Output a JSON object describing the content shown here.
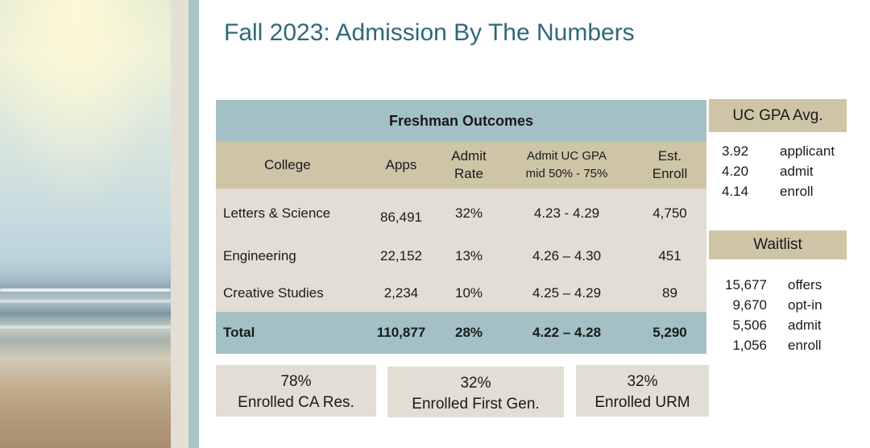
{
  "title": "Fall 2023: Admission By The Numbers",
  "table": {
    "caption": "Freshman Outcomes",
    "columns": {
      "college": "College",
      "apps": "Apps",
      "admit_rate_line1": "Admit",
      "admit_rate_line2": "Rate",
      "gpa_line1": "Admit UC GPA",
      "gpa_line2": "mid 50% - 75%",
      "enroll_line1": "Est.",
      "enroll_line2": "Enroll"
    },
    "rows": [
      {
        "college": "Letters & Science",
        "apps": "86,491",
        "admit_rate": "32%",
        "gpa": "4.23 - 4.29",
        "enroll": "4,750"
      },
      {
        "college": "Engineering",
        "apps": "22,152",
        "admit_rate": "13%",
        "gpa": "4.26 – 4.30",
        "enroll": "451"
      },
      {
        "college": "Creative Studies",
        "apps": "2,234",
        "admit_rate": "10%",
        "gpa": "4.25 – 4.29",
        "enroll": "89"
      }
    ],
    "total": {
      "college": "Total",
      "apps": "110,877",
      "admit_rate": "28%",
      "gpa": "4.22 – 4.28",
      "enroll": "5,290"
    }
  },
  "gpa_avg": {
    "heading": "UC GPA Avg.",
    "items": [
      {
        "value": "3.92",
        "label": "applicant"
      },
      {
        "value": "4.20",
        "label": "admit"
      },
      {
        "value": "4.14",
        "label": "enroll"
      }
    ]
  },
  "waitlist": {
    "heading": "Waitlist",
    "items": [
      {
        "value": "15,677",
        "label": "offers"
      },
      {
        "value": "9,670",
        "label": "opt-in"
      },
      {
        "value": "5,506",
        "label": "admit"
      },
      {
        "value": "1,056",
        "label": "enroll"
      }
    ]
  },
  "stats": [
    {
      "value": "78%",
      "label": "Enrolled CA Res."
    },
    {
      "value": "32%",
      "label": "Enrolled First Gen."
    },
    {
      "value": "32%",
      "label": "Enrolled URM"
    }
  ],
  "colors": {
    "title": "#2f6878",
    "teal": "#a3c1c5",
    "khaki": "#cdc5a6",
    "light": "#e2ded5"
  }
}
